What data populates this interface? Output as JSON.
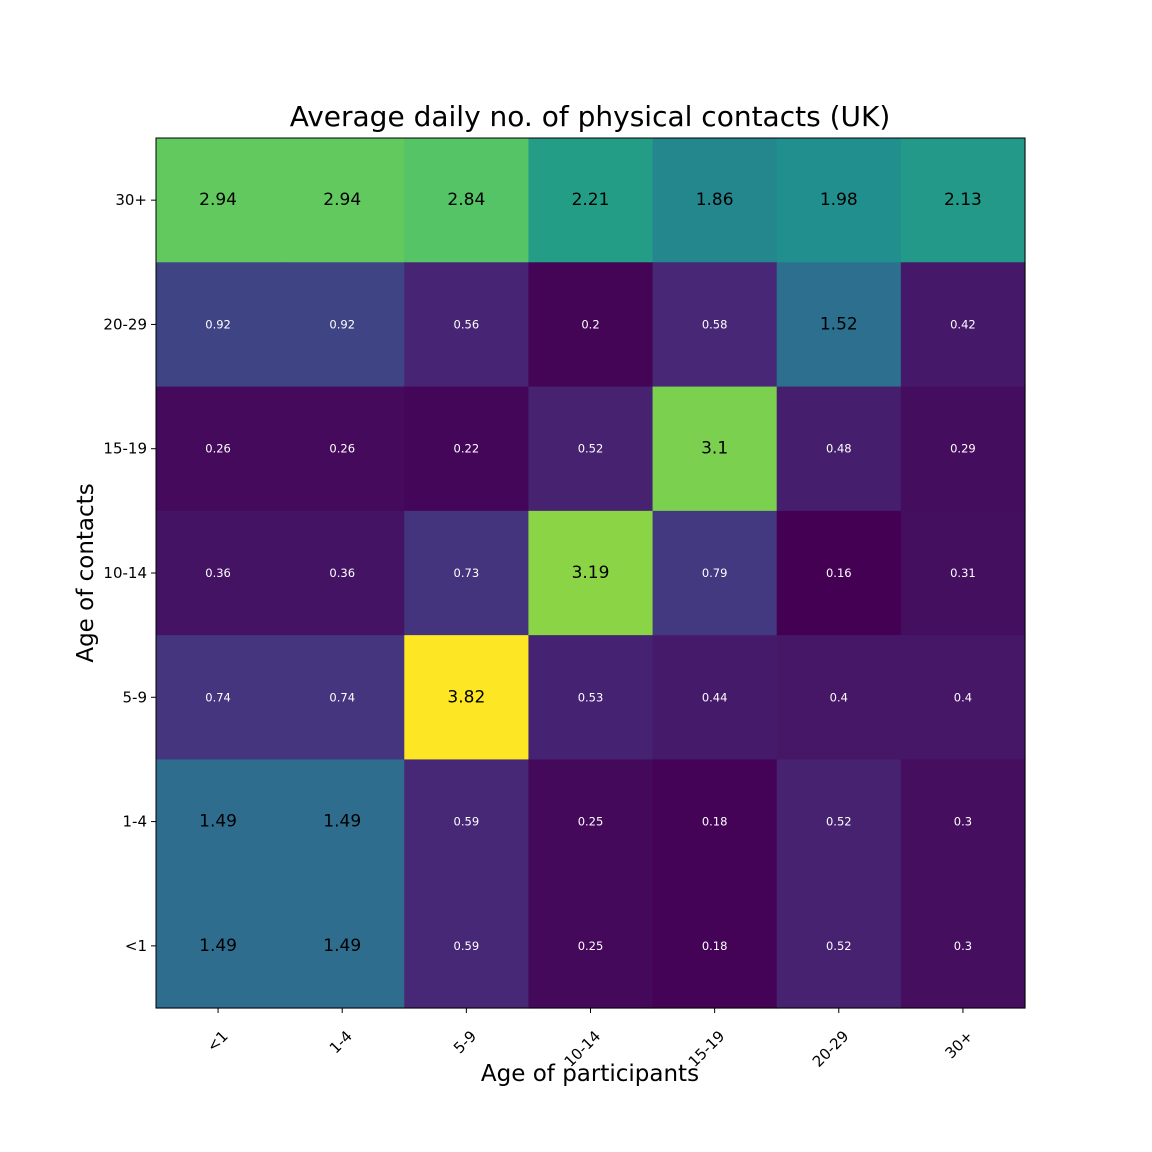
{
  "chart_data": {
    "type": "heatmap",
    "title": "Average daily no. of physical contacts (UK)",
    "xlabel": "Age of participants",
    "ylabel": "Age of contacts",
    "x_categories": [
      "<1",
      "1-4",
      "5-9",
      "10-14",
      "15-19",
      "20-29",
      "30+"
    ],
    "y_categories": [
      "30+",
      "20-29",
      "15-19",
      "10-14",
      "5-9",
      "1-4",
      "<1"
    ],
    "values": [
      [
        2.94,
        2.94,
        2.84,
        2.21,
        1.86,
        1.98,
        2.13
      ],
      [
        0.92,
        0.92,
        0.56,
        0.2,
        0.58,
        1.52,
        0.42
      ],
      [
        0.26,
        0.26,
        0.22,
        0.52,
        3.1,
        0.48,
        0.29
      ],
      [
        0.36,
        0.36,
        0.73,
        3.19,
        0.79,
        0.16,
        0.31
      ],
      [
        0.74,
        0.74,
        3.82,
        0.53,
        0.44,
        0.4,
        0.4
      ],
      [
        1.49,
        1.49,
        0.59,
        0.25,
        0.18,
        0.52,
        0.3
      ],
      [
        1.49,
        1.49,
        0.59,
        0.25,
        0.18,
        0.52,
        0.3
      ]
    ],
    "colormap": "viridis",
    "value_range": [
      0.16,
      3.82
    ],
    "grid": false,
    "legend": "none"
  }
}
